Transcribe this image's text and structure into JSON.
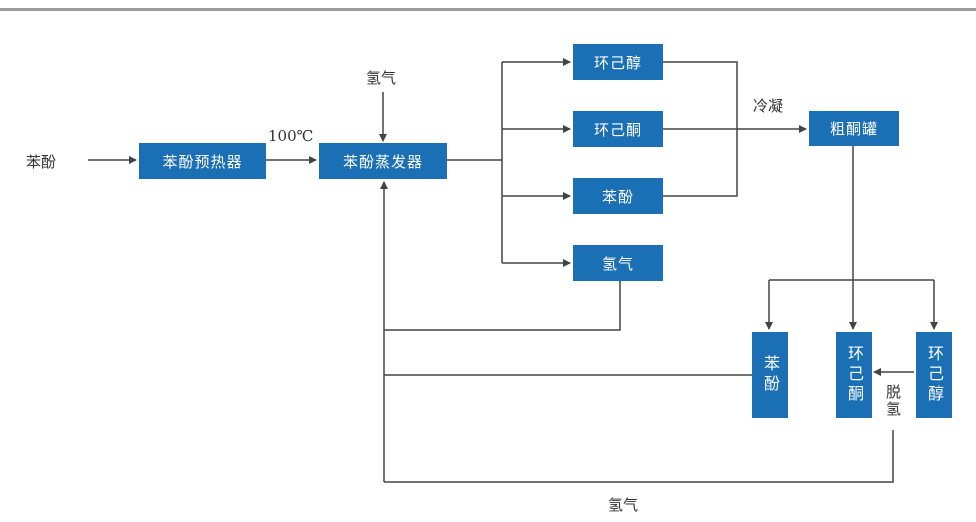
{
  "colors": {
    "box": "#1a6fb5",
    "line": "#444444",
    "text": "#333333",
    "rule": "#9a9a9a"
  },
  "labels": {
    "phenol_in": "苯酚",
    "hydrogen_top": "氢气",
    "temp": "100℃",
    "condense": "冷凝",
    "dehydrogenation": "脱氢",
    "hydrogen_bottom": "氢气"
  },
  "boxes": {
    "preheater": "苯酚预热器",
    "evaporator": "苯酚蒸发器",
    "cyclohexanol": "环己醇",
    "cyclohexanone": "环己酮",
    "phenol": "苯酚",
    "hydrogen": "氢气",
    "crude_tank": "粗酮罐",
    "col_phenol": "苯酚",
    "col_cyclohexanone": "环己酮",
    "col_cyclohexanol": "环己醇"
  }
}
